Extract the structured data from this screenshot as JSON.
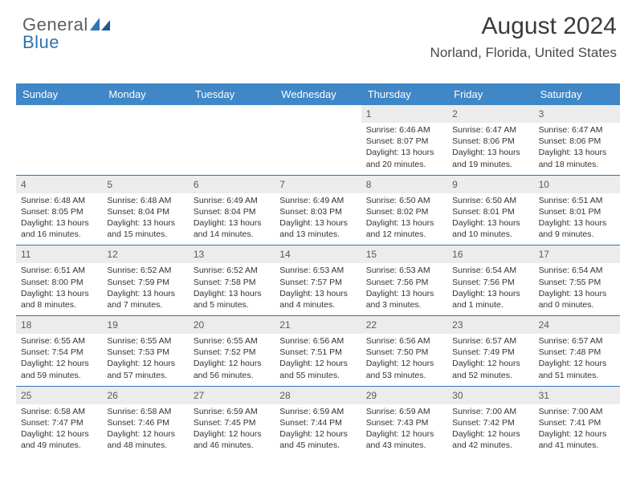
{
  "brand": {
    "part1": "General",
    "part2": "Blue"
  },
  "title": "August 2024",
  "location": "Norland, Florida, United States",
  "colors": {
    "header_bg": "#3f87c6",
    "accent": "#2f74b5",
    "daynum_bg": "#ececec",
    "text": "#333333",
    "title_text": "#3a3a3a"
  },
  "daynames": [
    "Sunday",
    "Monday",
    "Tuesday",
    "Wednesday",
    "Thursday",
    "Friday",
    "Saturday"
  ],
  "grid": [
    [
      null,
      null,
      null,
      null,
      {
        "n": "1",
        "sr": "6:46 AM",
        "ss": "8:07 PM",
        "dl": "13 hours and 20 minutes."
      },
      {
        "n": "2",
        "sr": "6:47 AM",
        "ss": "8:06 PM",
        "dl": "13 hours and 19 minutes."
      },
      {
        "n": "3",
        "sr": "6:47 AM",
        "ss": "8:06 PM",
        "dl": "13 hours and 18 minutes."
      }
    ],
    [
      {
        "n": "4",
        "sr": "6:48 AM",
        "ss": "8:05 PM",
        "dl": "13 hours and 16 minutes."
      },
      {
        "n": "5",
        "sr": "6:48 AM",
        "ss": "8:04 PM",
        "dl": "13 hours and 15 minutes."
      },
      {
        "n": "6",
        "sr": "6:49 AM",
        "ss": "8:04 PM",
        "dl": "13 hours and 14 minutes."
      },
      {
        "n": "7",
        "sr": "6:49 AM",
        "ss": "8:03 PM",
        "dl": "13 hours and 13 minutes."
      },
      {
        "n": "8",
        "sr": "6:50 AM",
        "ss": "8:02 PM",
        "dl": "13 hours and 12 minutes."
      },
      {
        "n": "9",
        "sr": "6:50 AM",
        "ss": "8:01 PM",
        "dl": "13 hours and 10 minutes."
      },
      {
        "n": "10",
        "sr": "6:51 AM",
        "ss": "8:01 PM",
        "dl": "13 hours and 9 minutes."
      }
    ],
    [
      {
        "n": "11",
        "sr": "6:51 AM",
        "ss": "8:00 PM",
        "dl": "13 hours and 8 minutes."
      },
      {
        "n": "12",
        "sr": "6:52 AM",
        "ss": "7:59 PM",
        "dl": "13 hours and 7 minutes."
      },
      {
        "n": "13",
        "sr": "6:52 AM",
        "ss": "7:58 PM",
        "dl": "13 hours and 5 minutes."
      },
      {
        "n": "14",
        "sr": "6:53 AM",
        "ss": "7:57 PM",
        "dl": "13 hours and 4 minutes."
      },
      {
        "n": "15",
        "sr": "6:53 AM",
        "ss": "7:56 PM",
        "dl": "13 hours and 3 minutes."
      },
      {
        "n": "16",
        "sr": "6:54 AM",
        "ss": "7:56 PM",
        "dl": "13 hours and 1 minute."
      },
      {
        "n": "17",
        "sr": "6:54 AM",
        "ss": "7:55 PM",
        "dl": "13 hours and 0 minutes."
      }
    ],
    [
      {
        "n": "18",
        "sr": "6:55 AM",
        "ss": "7:54 PM",
        "dl": "12 hours and 59 minutes."
      },
      {
        "n": "19",
        "sr": "6:55 AM",
        "ss": "7:53 PM",
        "dl": "12 hours and 57 minutes."
      },
      {
        "n": "20",
        "sr": "6:55 AM",
        "ss": "7:52 PM",
        "dl": "12 hours and 56 minutes."
      },
      {
        "n": "21",
        "sr": "6:56 AM",
        "ss": "7:51 PM",
        "dl": "12 hours and 55 minutes."
      },
      {
        "n": "22",
        "sr": "6:56 AM",
        "ss": "7:50 PM",
        "dl": "12 hours and 53 minutes."
      },
      {
        "n": "23",
        "sr": "6:57 AM",
        "ss": "7:49 PM",
        "dl": "12 hours and 52 minutes."
      },
      {
        "n": "24",
        "sr": "6:57 AM",
        "ss": "7:48 PM",
        "dl": "12 hours and 51 minutes."
      }
    ],
    [
      {
        "n": "25",
        "sr": "6:58 AM",
        "ss": "7:47 PM",
        "dl": "12 hours and 49 minutes."
      },
      {
        "n": "26",
        "sr": "6:58 AM",
        "ss": "7:46 PM",
        "dl": "12 hours and 48 minutes."
      },
      {
        "n": "27",
        "sr": "6:59 AM",
        "ss": "7:45 PM",
        "dl": "12 hours and 46 minutes."
      },
      {
        "n": "28",
        "sr": "6:59 AM",
        "ss": "7:44 PM",
        "dl": "12 hours and 45 minutes."
      },
      {
        "n": "29",
        "sr": "6:59 AM",
        "ss": "7:43 PM",
        "dl": "12 hours and 43 minutes."
      },
      {
        "n": "30",
        "sr": "7:00 AM",
        "ss": "7:42 PM",
        "dl": "12 hours and 42 minutes."
      },
      {
        "n": "31",
        "sr": "7:00 AM",
        "ss": "7:41 PM",
        "dl": "12 hours and 41 minutes."
      }
    ]
  ],
  "labels": {
    "sunrise": "Sunrise:",
    "sunset": "Sunset:",
    "daylight": "Daylight:"
  }
}
